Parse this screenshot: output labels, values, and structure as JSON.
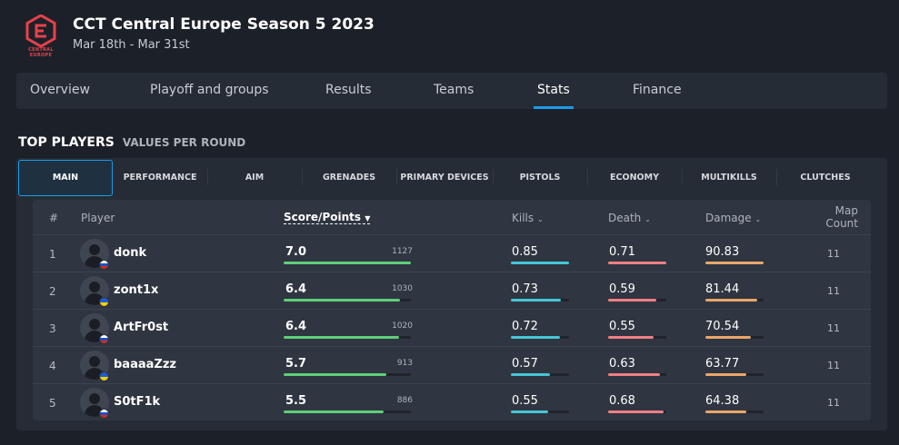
{
  "event": {
    "title": "CCT Central Europe Season 5 2023",
    "dates": "Mar 18th - Mar 31st",
    "logo_text": "CENTRAL EUROPE"
  },
  "nav": {
    "items": [
      "Overview",
      "Playoff and groups",
      "Results",
      "Teams",
      "Stats",
      "Finance"
    ],
    "active": "Stats"
  },
  "section": {
    "title": "TOP PLAYERS",
    "subtitle": "VALUES PER ROUND"
  },
  "subtabs": {
    "items": [
      "MAIN",
      "PERFORMANCE",
      "AIM",
      "GRENADES",
      "PRIMARY DEVICES",
      "PISTOLS",
      "ECONOMY",
      "MULTIKILLS",
      "CLUTCHES"
    ],
    "active": "MAIN"
  },
  "table": {
    "headers": {
      "rank": "#",
      "player": "Player",
      "score": "Score/Points",
      "kills": "Kills",
      "death": "Death",
      "damage": "Damage",
      "map_count_1": "Map",
      "map_count_2": "Count"
    },
    "rows": [
      {
        "rank": "1",
        "name": "donk",
        "flag": "RU",
        "score": "7.0",
        "points": "1127",
        "kills": "0.85",
        "death": "0.71",
        "damage": "90.83",
        "maps": "11"
      },
      {
        "rank": "2",
        "name": "zont1x",
        "flag": "UA",
        "score": "6.4",
        "points": "1030",
        "kills": "0.73",
        "death": "0.59",
        "damage": "81.44",
        "maps": "11"
      },
      {
        "rank": "3",
        "name": "ArtFr0st",
        "flag": "RU",
        "score": "6.4",
        "points": "1020",
        "kills": "0.72",
        "death": "0.55",
        "damage": "70.54",
        "maps": "11"
      },
      {
        "rank": "4",
        "name": "baaaaZzz",
        "flag": "UA",
        "score": "5.7",
        "points": "913",
        "kills": "0.57",
        "death": "0.63",
        "damage": "63.77",
        "maps": "11"
      },
      {
        "rank": "5",
        "name": "S0tF1k",
        "flag": "RU",
        "score": "5.5",
        "points": "886",
        "kills": "0.55",
        "death": "0.68",
        "damage": "64.38",
        "maps": "11"
      }
    ]
  },
  "bar_levels": {
    "score": [
      1.0,
      0.914,
      0.905,
      0.81,
      0.786
    ],
    "kills": [
      1.0,
      0.859,
      0.847,
      0.671,
      0.647
    ],
    "death": [
      1.0,
      0.831,
      0.775,
      0.887,
      0.958
    ],
    "damage": [
      1.0,
      0.897,
      0.777,
      0.702,
      0.708
    ]
  },
  "colors": {
    "accent": "#1a9be6",
    "logo": "#e8414b",
    "score_bar": "#5fcf7a",
    "kills_bar": "#45c6d6",
    "death_bar": "#ef7f84",
    "damage_bar": "#e9a76a"
  },
  "icons": {
    "sort_active": "caret-down-filled-icon",
    "sort_inactive": "chevron-down-icon",
    "avatar": "user-silhouette-icon"
  }
}
